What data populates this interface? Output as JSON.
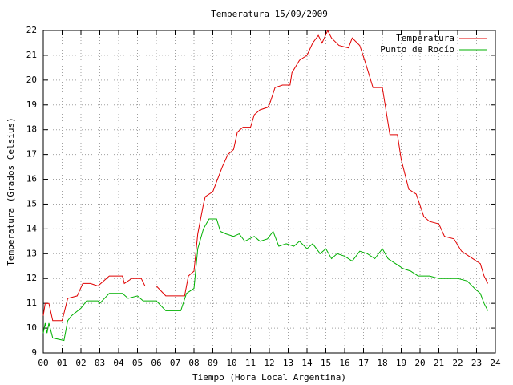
{
  "chart_data": {
    "type": "line",
    "title": "Temperatura 15/09/2009",
    "xlabel": "Tiempo (Hora Local Argentina)",
    "ylabel": "Temperatura (Grados Celsius)",
    "xlim": [
      0,
      24
    ],
    "ylim": [
      9,
      22
    ],
    "xticks": [
      {
        "value": 0,
        "label": "00"
      },
      {
        "value": 1,
        "label": "01"
      },
      {
        "value": 2,
        "label": "02"
      },
      {
        "value": 3,
        "label": "03"
      },
      {
        "value": 4,
        "label": "04"
      },
      {
        "value": 5,
        "label": "05"
      },
      {
        "value": 6,
        "label": "06"
      },
      {
        "value": 7,
        "label": "07"
      },
      {
        "value": 8,
        "label": "08"
      },
      {
        "value": 9,
        "label": "09"
      },
      10,
      11,
      12,
      13,
      14,
      15,
      16,
      17,
      18,
      19,
      20,
      21,
      22,
      23,
      24
    ],
    "yticks": [
      9,
      10,
      11,
      12,
      13,
      14,
      15,
      16,
      17,
      18,
      19,
      20,
      21,
      22
    ],
    "grid": true,
    "legend": "top right",
    "series": [
      {
        "name": "Temperatura",
        "color": "#e00000",
        "x": [
          0.0,
          0.1,
          0.3,
          0.5,
          1.0,
          1.3,
          1.8,
          2.1,
          2.5,
          2.9,
          3.5,
          4.2,
          4.3,
          4.7,
          5.2,
          5.4,
          6.0,
          6.5,
          7.5,
          7.7,
          8.0,
          8.2,
          8.5,
          8.6,
          9.0,
          9.5,
          9.8,
          10.1,
          10.3,
          10.6,
          11.0,
          11.2,
          11.5,
          11.9,
          12.0,
          12.3,
          12.7,
          13.1,
          13.2,
          13.6,
          14.0,
          14.3,
          14.6,
          14.8,
          15.1,
          15.3,
          15.7,
          16.2,
          16.4,
          16.8,
          17.1,
          17.5,
          18.0,
          18.4,
          18.8,
          19.0,
          19.4,
          19.8,
          20.2,
          20.5,
          21.0,
          21.3,
          21.8,
          22.2,
          22.6,
          23.0,
          23.2,
          23.4,
          23.6
        ],
        "values": [
          10.5,
          11.0,
          11.0,
          10.3,
          10.3,
          11.2,
          11.3,
          11.8,
          11.8,
          11.7,
          12.1,
          12.1,
          11.8,
          12.0,
          12.0,
          11.7,
          11.7,
          11.3,
          11.3,
          12.1,
          12.3,
          13.8,
          15.0,
          15.3,
          15.5,
          16.5,
          17.0,
          17.2,
          17.9,
          18.1,
          18.1,
          18.6,
          18.8,
          18.9,
          19.0,
          19.7,
          19.8,
          19.8,
          20.3,
          20.8,
          21.0,
          21.5,
          21.8,
          21.5,
          22.0,
          21.7,
          21.4,
          21.3,
          21.7,
          21.4,
          20.7,
          19.7,
          19.7,
          17.8,
          17.8,
          16.8,
          15.6,
          15.4,
          14.5,
          14.3,
          14.2,
          13.7,
          13.6,
          13.1,
          12.9,
          12.7,
          12.6,
          12.1,
          11.8
        ]
      },
      {
        "name": "Punto de Rocío",
        "color": "#00b000",
        "x": [
          0.0,
          0.1,
          0.2,
          0.3,
          0.5,
          1.1,
          1.3,
          1.5,
          2.0,
          2.3,
          2.9,
          3.0,
          3.5,
          4.2,
          4.5,
          5.0,
          5.3,
          6.0,
          6.5,
          7.3,
          7.6,
          8.0,
          8.2,
          8.5,
          8.8,
          9.2,
          9.4,
          9.7,
          10.1,
          10.4,
          10.7,
          11.2,
          11.5,
          11.9,
          12.2,
          12.5,
          12.9,
          13.3,
          13.6,
          14.0,
          14.3,
          14.7,
          15.0,
          15.3,
          15.6,
          16.0,
          16.4,
          16.8,
          17.2,
          17.6,
          18.0,
          18.3,
          18.7,
          19.1,
          19.5,
          19.9,
          20.5,
          21.0,
          21.5,
          22.0,
          22.5,
          22.9,
          23.2,
          23.4,
          23.6
        ],
        "values": [
          9.8,
          10.2,
          9.8,
          10.2,
          9.6,
          9.5,
          10.3,
          10.5,
          10.8,
          11.1,
          11.1,
          11.0,
          11.4,
          11.4,
          11.2,
          11.3,
          11.1,
          11.1,
          10.7,
          10.7,
          11.4,
          11.6,
          13.2,
          14.0,
          14.4,
          14.4,
          13.9,
          13.8,
          13.7,
          13.8,
          13.5,
          13.7,
          13.5,
          13.6,
          13.9,
          13.3,
          13.4,
          13.3,
          13.5,
          13.2,
          13.4,
          13.0,
          13.2,
          12.8,
          13.0,
          12.9,
          12.7,
          13.1,
          13.0,
          12.8,
          13.2,
          12.8,
          12.6,
          12.4,
          12.3,
          12.1,
          12.1,
          12.0,
          12.0,
          12.0,
          11.9,
          11.6,
          11.4,
          11.0,
          10.7
        ]
      }
    ]
  }
}
